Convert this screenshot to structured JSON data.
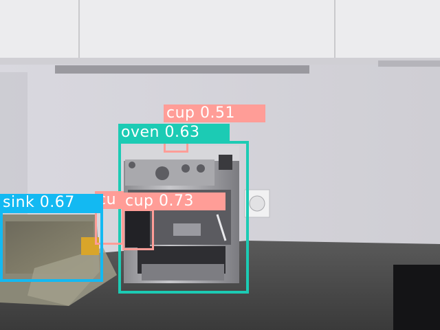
{
  "colors": {
    "cup": "#ff9d97",
    "oven": "#1ccbb4",
    "sink": "#13b9f2"
  },
  "detections": [
    {
      "class": "cup",
      "text": "cup 0.51",
      "color": "#ff9d97"
    },
    {
      "class": "oven",
      "text": "oven 0.63",
      "color": "#1ccbb4"
    },
    {
      "class": "sink",
      "text": "sink 0.67",
      "color": "#13b9f2"
    },
    {
      "class": "cup",
      "text": "cu",
      "color": "#ff9d97"
    },
    {
      "class": "cup",
      "text": "cup 0.73",
      "color": "#ff9d97"
    }
  ]
}
